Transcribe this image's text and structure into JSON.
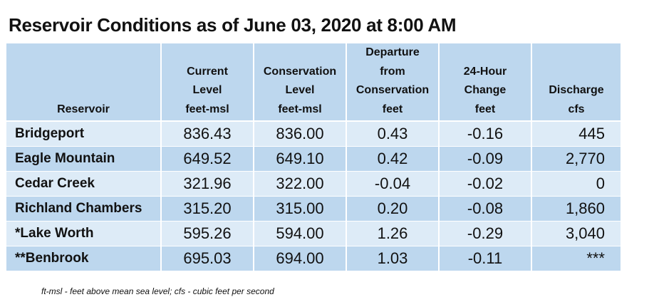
{
  "title": "Reservoir Conditions as of June 03, 2020 at 8:00 AM",
  "headers": [
    [
      "Reservoir"
    ],
    [
      "Current",
      "Level",
      "feet-msl"
    ],
    [
      "Conservation",
      "Level",
      "feet-msl"
    ],
    [
      "Departure",
      "from",
      "Conservation",
      "feet"
    ],
    [
      "24-Hour",
      "Change",
      "feet"
    ],
    [
      "Discharge",
      "cfs"
    ]
  ],
  "rows": [
    {
      "name": "Bridgeport",
      "current": "836.43",
      "conservation": "836.00",
      "departure": "0.43",
      "change": "-0.16",
      "discharge": "445"
    },
    {
      "name": "Eagle Mountain",
      "current": "649.52",
      "conservation": "649.10",
      "departure": "0.42",
      "change": "-0.09",
      "discharge": "2,770"
    },
    {
      "name": "Cedar Creek",
      "current": "321.96",
      "conservation": "322.00",
      "departure": "-0.04",
      "change": "-0.02",
      "discharge": "0"
    },
    {
      "name": "Richland Chambers",
      "current": "315.20",
      "conservation": "315.00",
      "departure": "0.20",
      "change": "-0.08",
      "discharge": "1,860"
    },
    {
      "name": "*Lake Worth",
      "current": "595.26",
      "conservation": "594.00",
      "departure": "1.26",
      "change": "-0.29",
      "discharge": "3,040"
    },
    {
      "name": "**Benbrook",
      "current": "695.03",
      "conservation": "694.00",
      "departure": "1.03",
      "change": "-0.11",
      "discharge": "***"
    }
  ],
  "footnote": "ft-msl - feet above mean sea level; cfs - cubic feet per second",
  "colors": {
    "header_bg": "#bdd7ee",
    "row_light": "#ddebf7",
    "row_dark": "#bdd7ee"
  }
}
